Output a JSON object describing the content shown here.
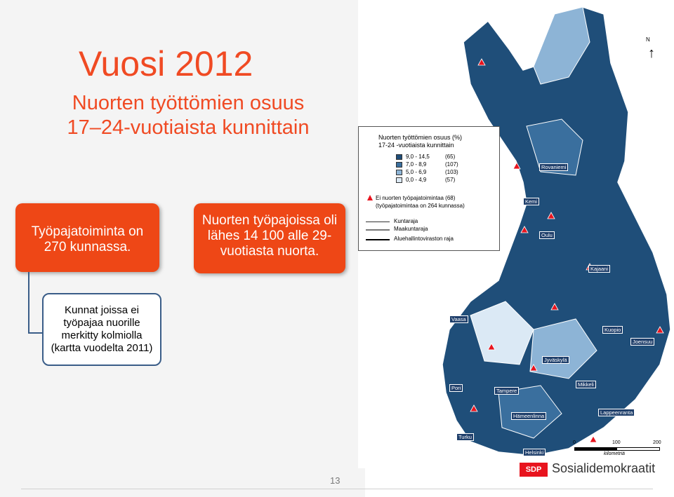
{
  "slide": {
    "title": "Vuosi 2012",
    "subtitle_line1": "Nuorten työttömien osuus",
    "subtitle_line2": "17–24-vuotiaista kunnittain",
    "box1_text": "Työpajatoiminta on 270 kunnassa.",
    "box2_text": "Nuorten työpajoissa oli lähes 14 100 alle 29-vuotiasta nuorta.",
    "box3_text": "Kunnat joissa ei työpajaa nuorille merkitty kolmiolla (kartta vuodelta 2011)",
    "page_number": "13",
    "logo_mark": "SDP",
    "logo_text": "Sosialidemokraatit",
    "accent_color": "#ee4716"
  },
  "legend": {
    "title_line1": "Nuorten työttömien osuus (%)",
    "title_line2": "17-24 -vuotiaista kunnittain",
    "classes": [
      {
        "range": "9,0 - 14,5",
        "count": "(65)",
        "color": "#1f4e79"
      },
      {
        "range": "7,0 -   8,9",
        "count": "(107)",
        "color": "#3a6f9e"
      },
      {
        "range": "5,0 -   6,9",
        "count": "(103)",
        "color": "#8db4d6"
      },
      {
        "range": "0,0 -   4,9",
        "count": "(57)",
        "color": "#dbe9f5"
      }
    ],
    "no_workshop_line1": "Ei nuorten työpajatoimintaa (68)",
    "no_workshop_line2": "(työpajatoimintaa on 264 kunnassa)",
    "boundaries": [
      "Kuntaraja",
      "Maakuntaraja",
      "Aluehallintoviraston raja"
    ]
  },
  "map": {
    "north_label": "N",
    "cities": [
      "Rovaniemi",
      "Kemi",
      "Oulu",
      "Kajaani",
      "Vaasa",
      "Kuopio",
      "Joensuu",
      "Jyväskylä",
      "Pori",
      "Tampere",
      "Mikkeli",
      "Lappeenranta",
      "Hämeenlinna",
      "Turku",
      "Helsinki"
    ],
    "scale_labels": [
      "0",
      "100",
      "200"
    ],
    "scale_unit": "kilometriä"
  }
}
